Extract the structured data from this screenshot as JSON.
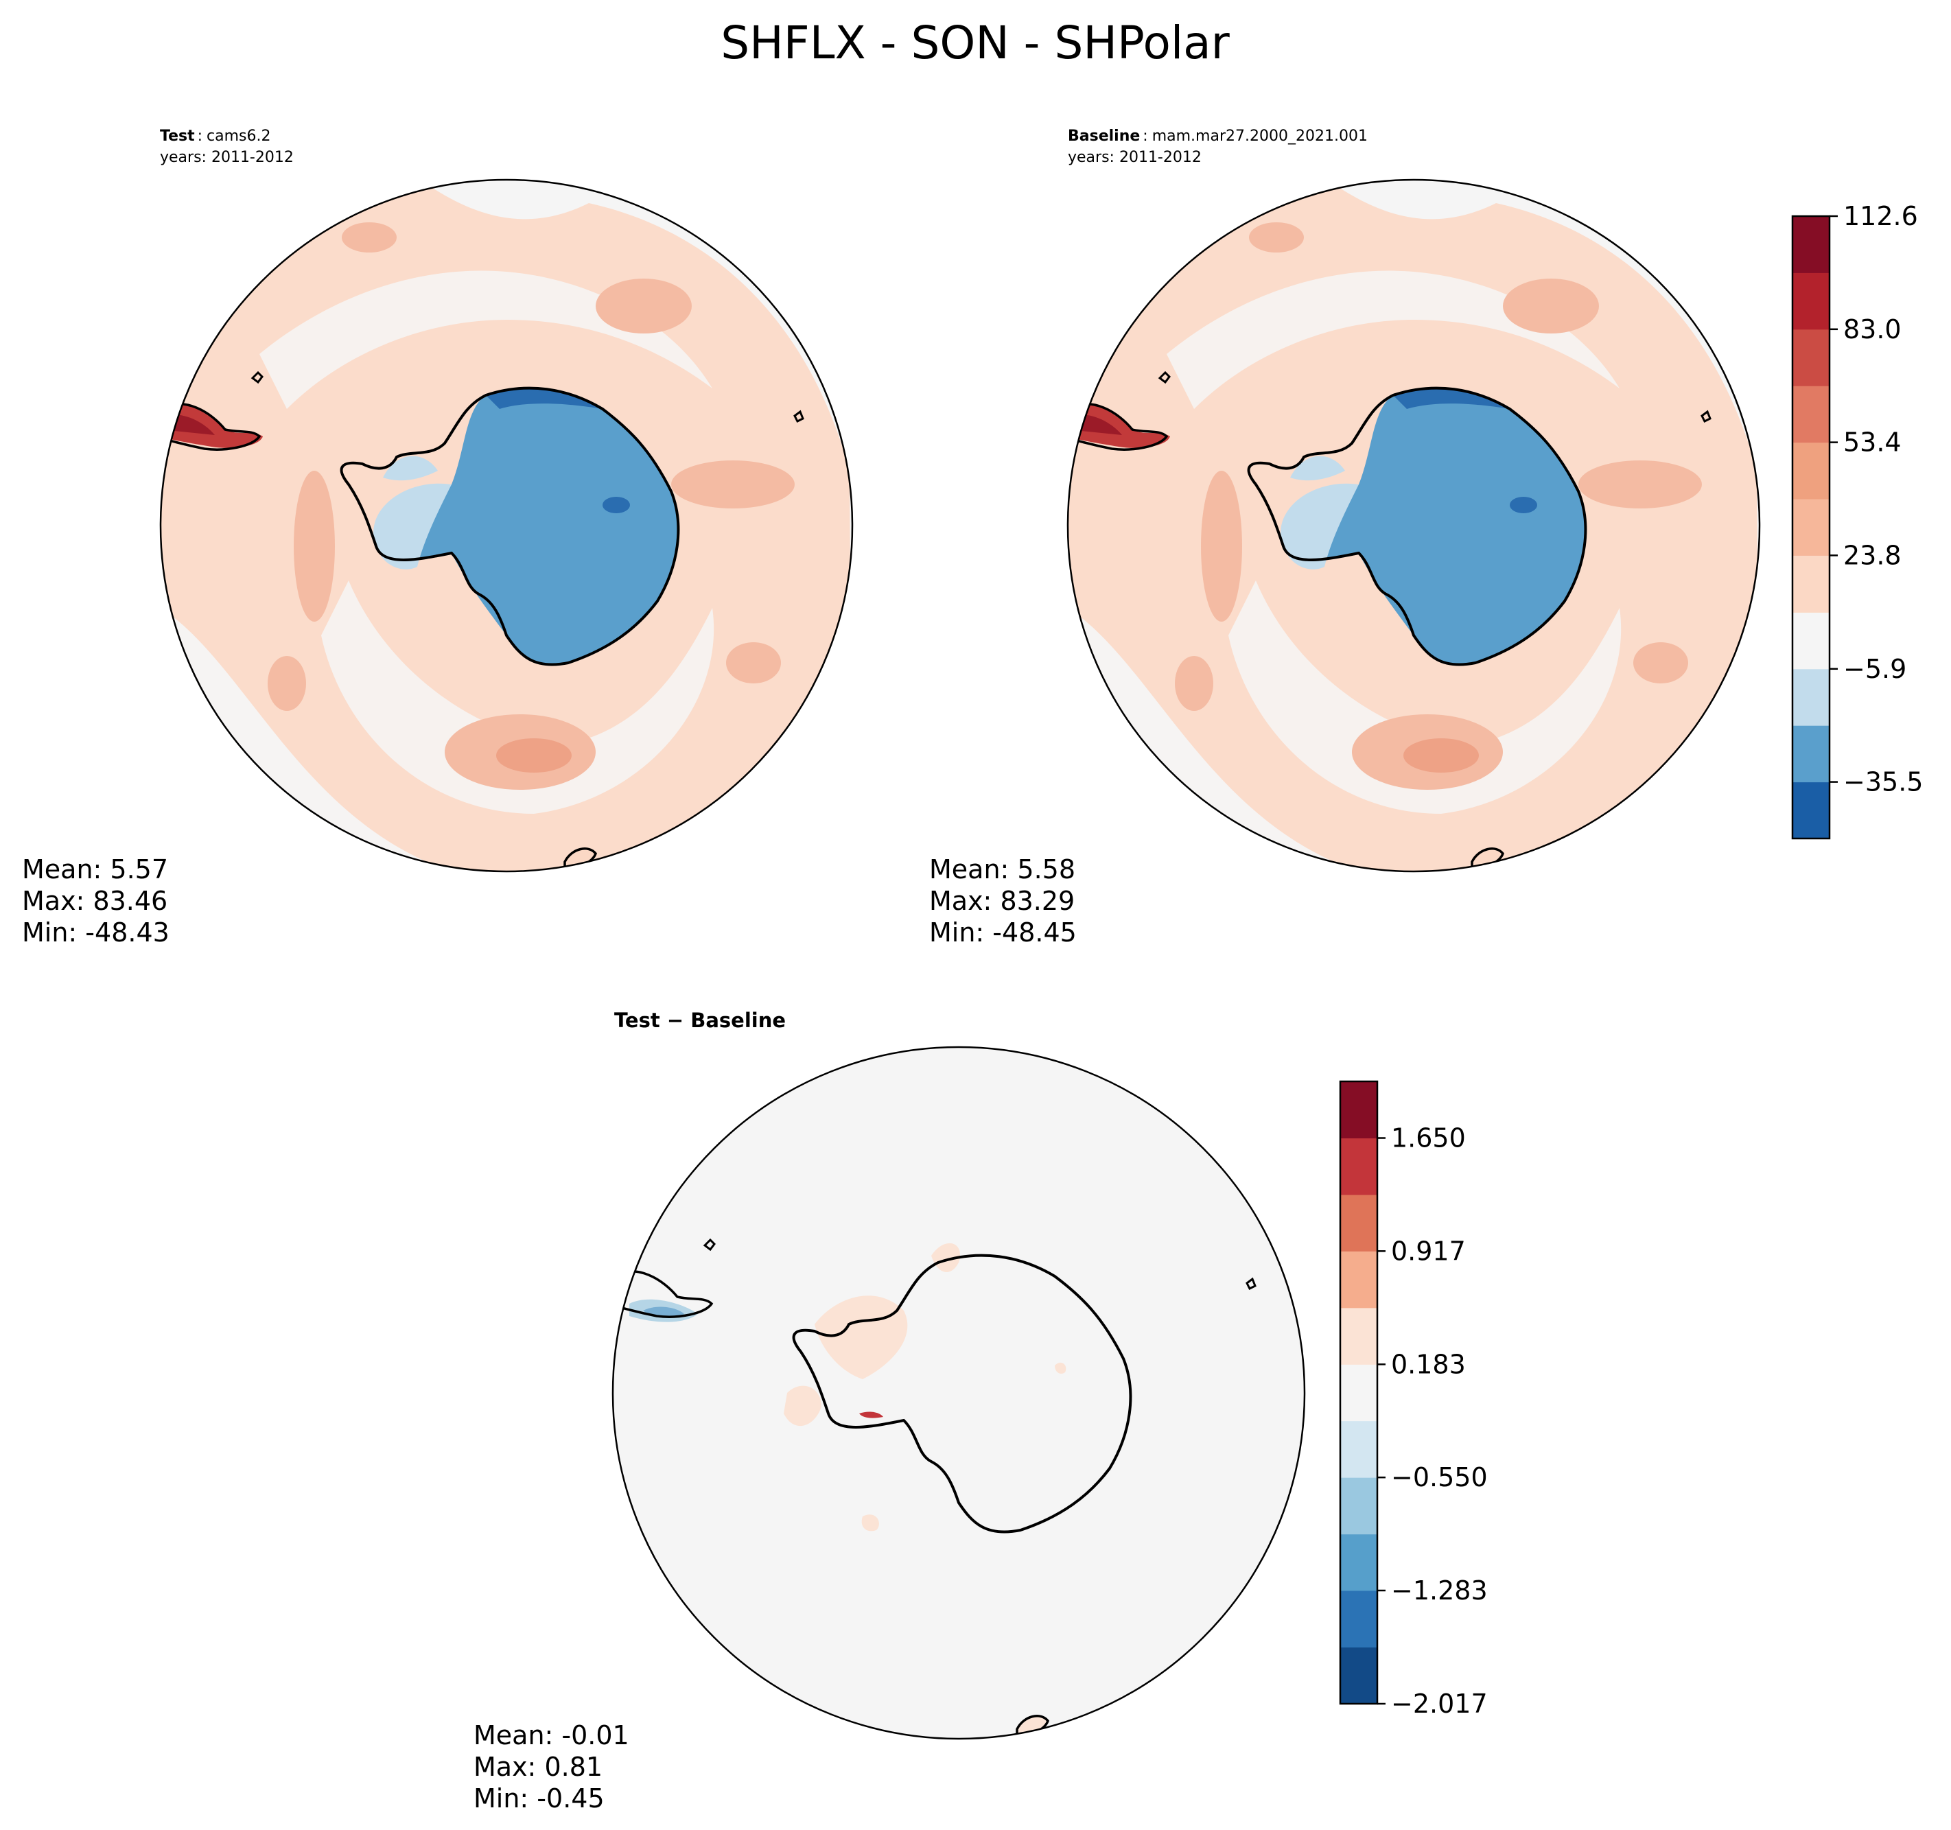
{
  "chart_data": {
    "type": "heatmap",
    "title": "SHFLX - SON - SHPolar",
    "panels": [
      {
        "id": "test",
        "label_bold": "Test",
        "label_name": "cams6.2",
        "years": "years: 2011-2012",
        "stats": {
          "mean": "Mean:  5.57",
          "max": "Max: 83.46",
          "min": "Min: -48.43"
        }
      },
      {
        "id": "baseline",
        "label_bold": "Baseline",
        "label_name": "mam.mar27.2000_2021.001",
        "years": "years: 2011-2012",
        "stats": {
          "mean": "Mean:  5.58",
          "max": "Max: 83.29",
          "min": "Min: -48.45"
        }
      },
      {
        "id": "diff",
        "label_bold": "Test − Baseline",
        "stats": {
          "mean": "Mean: -0.01",
          "max": "Max:  0.81",
          "min": "Min: -0.45"
        }
      }
    ],
    "colorbar_main": {
      "levels": [
        -50.3,
        -35.5,
        -20.7,
        -5.9,
        8.9,
        23.8,
        38.6,
        53.4,
        68.2,
        83.0,
        97.8,
        112.6
      ],
      "colors": [
        "#1a5ea6",
        "#5a9fcc",
        "#c2dcec",
        "#f5f5f5",
        "#fbd8c5",
        "#f6b79a",
        "#efa17f",
        "#e17a63",
        "#cb4c44",
        "#b3222c",
        "#850d25"
      ],
      "tick_labels": [
        "112.6",
        "83.0",
        "53.4",
        "23.8",
        "−5.9",
        "−35.5"
      ],
      "tick_values": [
        112.6,
        83.0,
        53.4,
        23.8,
        -5.9,
        -35.5
      ]
    },
    "colorbar_diff": {
      "levels": [
        -2.017,
        -1.65,
        -1.283,
        -0.917,
        -0.55,
        -0.183,
        0.183,
        0.55,
        0.917,
        1.283,
        1.65,
        2.017
      ],
      "colors": [
        "#124a87",
        "#2b73b5",
        "#569fcb",
        "#9ac8e0",
        "#d3e6f1",
        "#f5f5f5",
        "#fbe3d5",
        "#f5ad8d",
        "#df7458",
        "#c3353a",
        "#850d25"
      ],
      "tick_labels": [
        "1.650",
        "0.917",
        "0.183",
        "−0.550",
        "−1.283",
        "−2.017"
      ],
      "tick_values": [
        1.65,
        0.917,
        0.183,
        -0.55,
        -1.283,
        -2.017
      ]
    }
  }
}
